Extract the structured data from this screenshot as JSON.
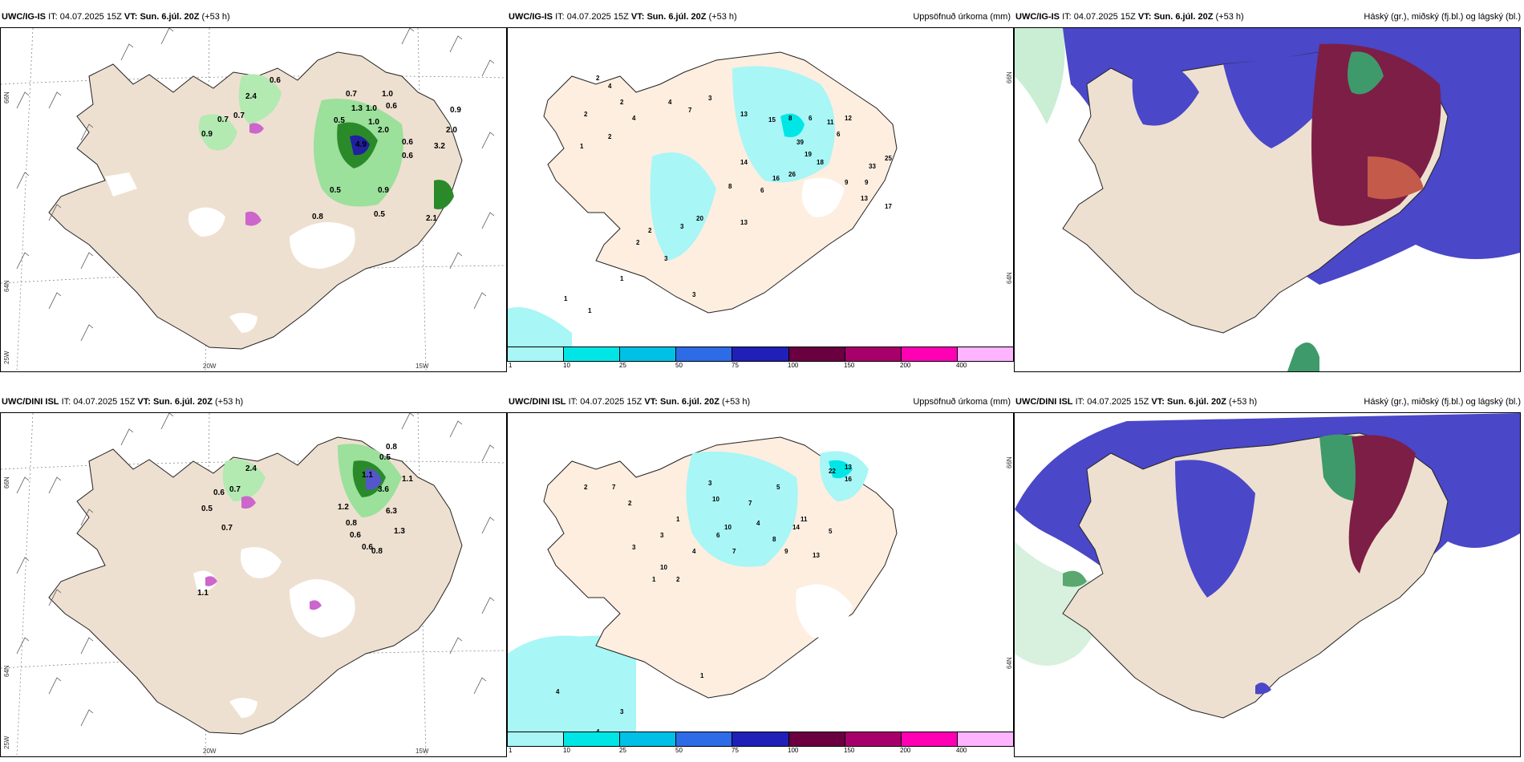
{
  "rows": [
    {
      "model": "UWC/IG-IS",
      "it_label": "IT:",
      "it_value": "04.07.2025 15Z",
      "vt_label": "VT:",
      "vt_value": "Sun. 6.júl. 20Z",
      "lead": "(+53 h)"
    },
    {
      "model": "UWC/DINI ISL",
      "it_label": "IT:",
      "it_value": "04.07.2025 15Z",
      "vt_label": "VT:",
      "vt_value": "Sun. 6.júl. 20Z",
      "lead": "(+53 h)"
    }
  ],
  "precip_title": "Uppsöfnuð úrkoma (mm)",
  "cloud_title": "Háský (gr.), miðský (fj.bl.) og lágský (bl.)",
  "axis": {
    "lat_top": "66N",
    "lat_mid": "64N",
    "lon_left": "25W",
    "lon_a": "20W",
    "lon_b": "15W",
    "lat_top_r": "66N",
    "lat_mid_r": "64N"
  },
  "colorbar": {
    "colors": [
      "#a8f6f6",
      "#00e6e6",
      "#00c0e6",
      "#2e6be6",
      "#2020b8",
      "#6a0040",
      "#a8006a",
      "#ff00b4",
      "#ffb4ff"
    ],
    "labels": [
      "1",
      "10",
      "25",
      "50",
      "75",
      "100",
      "150",
      "200",
      "400"
    ]
  },
  "top_wind_labels": [
    "0.6",
    "0.7",
    "2.4",
    "0.7",
    "0.9",
    "0.7",
    "1.0",
    "1.0",
    "0.6",
    "0.9",
    "0.5",
    "1.3",
    "1.0",
    "2.0",
    "4.9",
    "0.6",
    "0.6",
    "0.5",
    "0.8",
    "0.5",
    "2.0",
    "3.2",
    "0.9",
    "2.1"
  ],
  "bottom_wind_labels": [
    "0.8",
    "0.5",
    "2.4",
    "0.6",
    "0.7",
    "0.5",
    "0.7",
    "1.1",
    "1.2",
    "3.6",
    "0.8",
    "6.3",
    "0.6",
    "0.6",
    "0.8",
    "1.3",
    "1.1",
    "1.1"
  ],
  "top_precip_labels": [
    "2",
    "4",
    "2",
    "2",
    "4",
    "2",
    "1",
    "4",
    "7",
    "3",
    "13",
    "15",
    "8",
    "6",
    "11",
    "12",
    "39",
    "6",
    "19",
    "18",
    "33",
    "25",
    "9",
    "14",
    "8",
    "26",
    "9",
    "13",
    "17",
    "16",
    "6",
    "20",
    "3",
    "13",
    "2",
    "3",
    "2",
    "1",
    "1",
    "1",
    "3"
  ],
  "bottom_precip_labels": [
    "2",
    "7",
    "2",
    "1",
    "3",
    "10",
    "5",
    "22",
    "13",
    "16",
    "7",
    "11",
    "14",
    "10",
    "4",
    "8",
    "13",
    "9",
    "5",
    "6",
    "4",
    "7",
    "3",
    "1",
    "2",
    "3",
    "10",
    "4",
    "3",
    "4",
    "1"
  ]
}
